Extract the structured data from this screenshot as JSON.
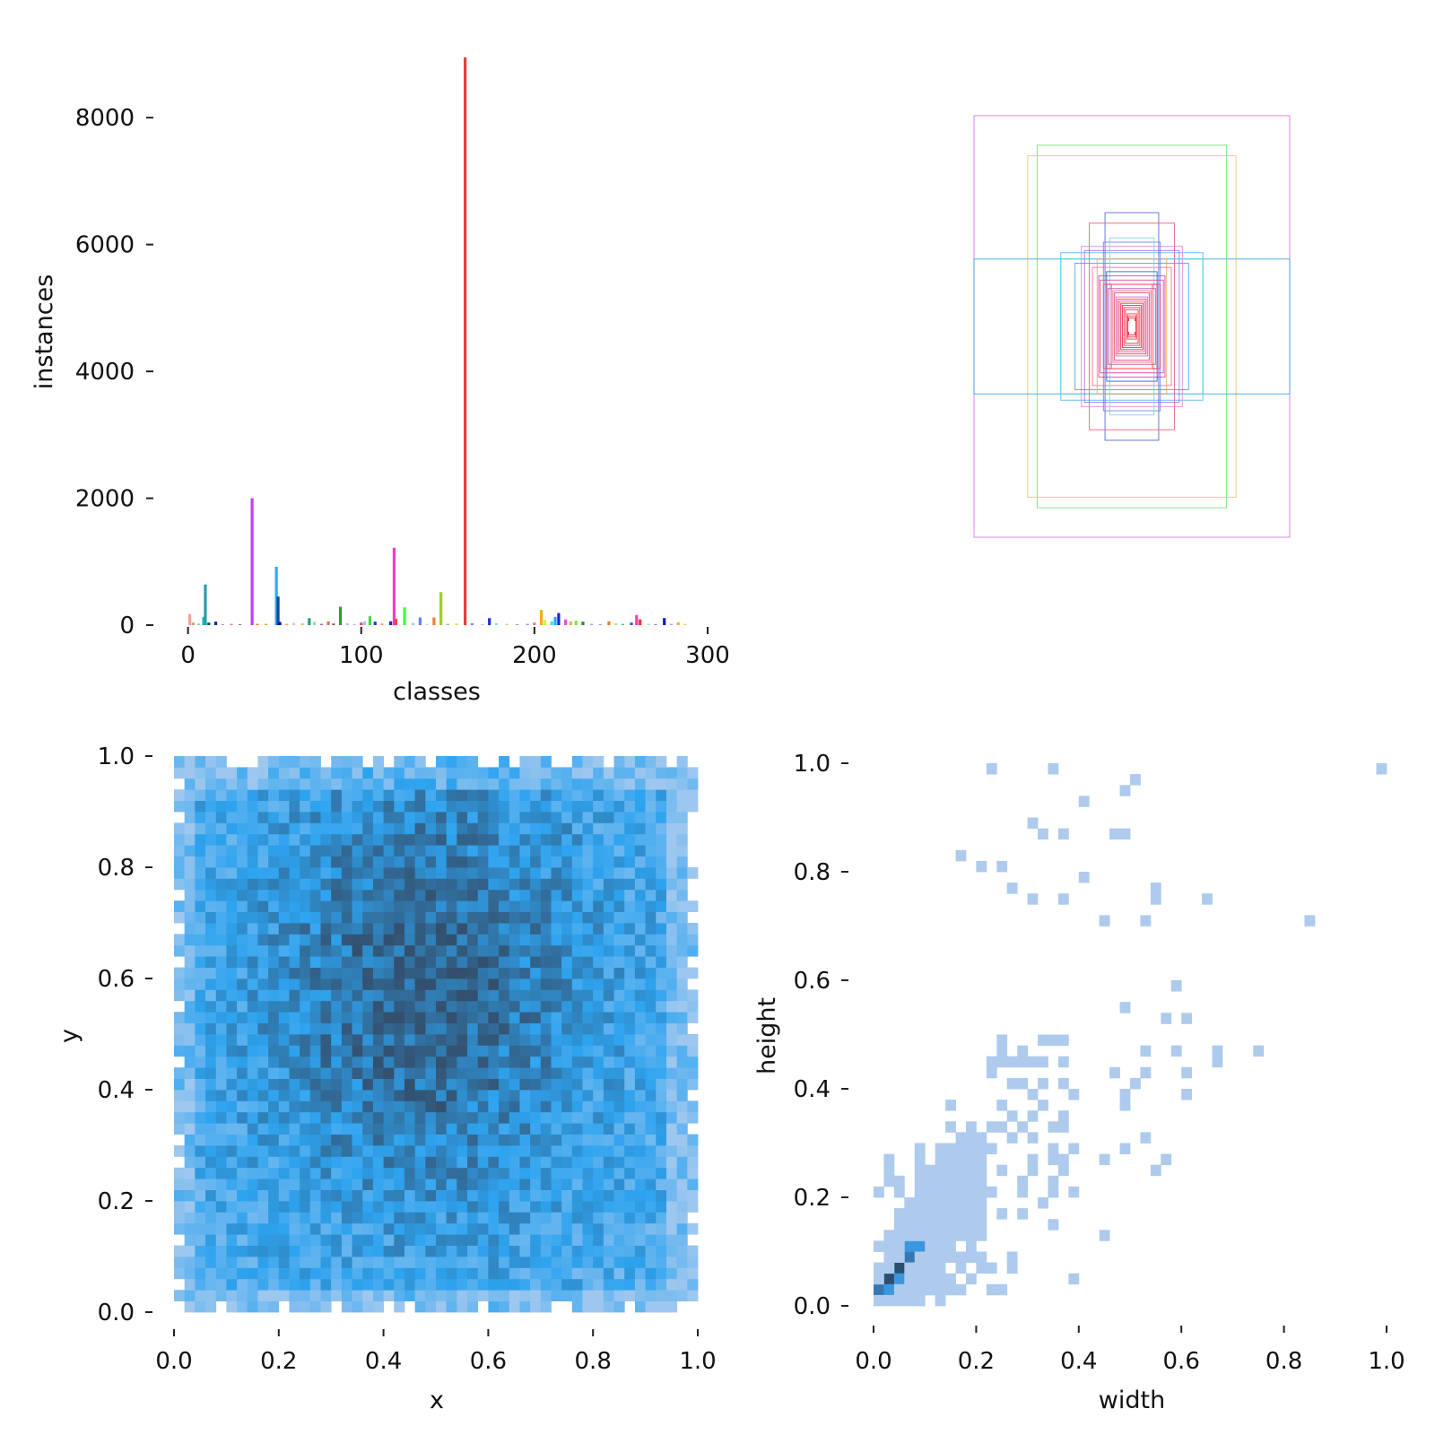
{
  "chart_data": [
    {
      "type": "bar",
      "id": "class-histogram",
      "xlabel": "classes",
      "ylabel": "instances",
      "xlim": [
        -5,
        300
      ],
      "ylim": [
        0,
        8950
      ],
      "xticks": [
        "0",
        "100",
        "200",
        "300"
      ],
      "yticks": [
        "0",
        "2000",
        "4000",
        "6000",
        "8000"
      ],
      "bars": [
        {
          "x": 1,
          "v": 175,
          "c": "#f4a39a"
        },
        {
          "x": 3,
          "v": 40,
          "c": "#c8a070"
        },
        {
          "x": 6,
          "v": 25,
          "c": "#7bd4c4"
        },
        {
          "x": 9,
          "v": 130,
          "c": "#17becf"
        },
        {
          "x": 10,
          "v": 640,
          "c": "#2e9aa8"
        },
        {
          "x": 12,
          "v": 40,
          "c": "#0a5c3c"
        },
        {
          "x": 16,
          "v": 55,
          "c": "#1f1f9f"
        },
        {
          "x": 20,
          "v": 15,
          "c": "#9aa0a6"
        },
        {
          "x": 25,
          "v": 20,
          "c": "#e377c2"
        },
        {
          "x": 30,
          "v": 15,
          "c": "#7f7f7f"
        },
        {
          "x": 37,
          "v": 2000,
          "c": "#c040f0"
        },
        {
          "x": 40,
          "v": 20,
          "c": "#ff7f0e"
        },
        {
          "x": 45,
          "v": 20,
          "c": "#bcbd22"
        },
        {
          "x": 51,
          "v": 920,
          "c": "#1fb4f0"
        },
        {
          "x": 52,
          "v": 450,
          "c": "#1f3f9f"
        },
        {
          "x": 53,
          "v": 50,
          "c": "#0000c0"
        },
        {
          "x": 57,
          "v": 20,
          "c": "#ff9896"
        },
        {
          "x": 61,
          "v": 35,
          "c": "#f7b6d2"
        },
        {
          "x": 66,
          "v": 30,
          "c": "#ffbb78"
        },
        {
          "x": 70,
          "v": 110,
          "c": "#20a080"
        },
        {
          "x": 73,
          "v": 50,
          "c": "#98df8a"
        },
        {
          "x": 77,
          "v": 20,
          "c": "#9467bd"
        },
        {
          "x": 81,
          "v": 60,
          "c": "#e87060"
        },
        {
          "x": 84,
          "v": 25,
          "c": "#8c564b"
        },
        {
          "x": 88,
          "v": 290,
          "c": "#2ca02c"
        },
        {
          "x": 92,
          "v": 30,
          "c": "#aec7e8"
        },
        {
          "x": 96,
          "v": 15,
          "c": "#c5b0d5"
        },
        {
          "x": 100,
          "v": 40,
          "c": "#ff4060"
        },
        {
          "x": 102,
          "v": 60,
          "c": "#a0c0ff"
        },
        {
          "x": 105,
          "v": 140,
          "c": "#40e040"
        },
        {
          "x": 108,
          "v": 55,
          "c": "#2040c0"
        },
        {
          "x": 112,
          "v": 25,
          "c": "#f0a0a0"
        },
        {
          "x": 117,
          "v": 60,
          "c": "#2020d0"
        },
        {
          "x": 119,
          "v": 1220,
          "c": "#f040c0"
        },
        {
          "x": 120,
          "v": 100,
          "c": "#ff4040"
        },
        {
          "x": 125,
          "v": 280,
          "c": "#40ff40"
        },
        {
          "x": 130,
          "v": 35,
          "c": "#9ad0f0"
        },
        {
          "x": 134,
          "v": 120,
          "c": "#6080ff"
        },
        {
          "x": 138,
          "v": 20,
          "c": "#d0d0d0"
        },
        {
          "x": 142,
          "v": 120,
          "c": "#f08030"
        },
        {
          "x": 146,
          "v": 520,
          "c": "#a0d020"
        },
        {
          "x": 150,
          "v": 20,
          "c": "#80c0a0"
        },
        {
          "x": 155,
          "v": 25,
          "c": "#ffd040"
        },
        {
          "x": 160,
          "v": 8950,
          "c": "#e83c3c"
        },
        {
          "x": 164,
          "v": 30,
          "c": "#8080ff"
        },
        {
          "x": 170,
          "v": 15,
          "c": "#c0c0c0"
        },
        {
          "x": 174,
          "v": 110,
          "c": "#2030d0"
        },
        {
          "x": 178,
          "v": 30,
          "c": "#80e0f0"
        },
        {
          "x": 184,
          "v": 20,
          "c": "#f0c080"
        },
        {
          "x": 190,
          "v": 15,
          "c": "#a0a0a0"
        },
        {
          "x": 196,
          "v": 20,
          "c": "#60b0ff"
        },
        {
          "x": 200,
          "v": 40,
          "c": "#f070a0"
        },
        {
          "x": 204,
          "v": 240,
          "c": "#f0b020"
        },
        {
          "x": 206,
          "v": 80,
          "c": "#c0ff40"
        },
        {
          "x": 210,
          "v": 60,
          "c": "#40e0e0"
        },
        {
          "x": 212,
          "v": 130,
          "c": "#20b0ff"
        },
        {
          "x": 214,
          "v": 190,
          "c": "#2020d0"
        },
        {
          "x": 218,
          "v": 90,
          "c": "#f050d0"
        },
        {
          "x": 221,
          "v": 60,
          "c": "#f0b040"
        },
        {
          "x": 224,
          "v": 70,
          "c": "#80e040"
        },
        {
          "x": 228,
          "v": 55,
          "c": "#209020"
        },
        {
          "x": 233,
          "v": 20,
          "c": "#a0a0ff"
        },
        {
          "x": 238,
          "v": 15,
          "c": "#c080f0"
        },
        {
          "x": 243,
          "v": 60,
          "c": "#f08020"
        },
        {
          "x": 247,
          "v": 30,
          "c": "#c0e080"
        },
        {
          "x": 251,
          "v": 20,
          "c": "#40c0a0"
        },
        {
          "x": 256,
          "v": 40,
          "c": "#4040ff"
        },
        {
          "x": 259,
          "v": 160,
          "c": "#f040b0"
        },
        {
          "x": 261,
          "v": 90,
          "c": "#ff3030"
        },
        {
          "x": 266,
          "v": 20,
          "c": "#a0f0a0"
        },
        {
          "x": 270,
          "v": 15,
          "c": "#8080c0"
        },
        {
          "x": 275,
          "v": 110,
          "c": "#1010d0"
        },
        {
          "x": 279,
          "v": 20,
          "c": "#90b0f0"
        },
        {
          "x": 283,
          "v": 45,
          "c": "#f0b030"
        },
        {
          "x": 287,
          "v": 20,
          "c": "#f0d070"
        }
      ]
    },
    {
      "type": "other",
      "id": "box-overlay",
      "description_free": true,
      "axes_visible": false,
      "boxes": [
        {
          "w": 1.0,
          "h": 1.0,
          "c": "#d070e8"
        },
        {
          "w": 0.6,
          "h": 0.86,
          "c": "#70e070"
        },
        {
          "w": 0.66,
          "h": 0.81,
          "c": "#f0c070"
        },
        {
          "w": 1.0,
          "h": 0.32,
          "c": "#3aa0d8"
        },
        {
          "w": 0.45,
          "h": 0.35,
          "c": "#5ab0f0"
        },
        {
          "w": 0.45,
          "h": 0.32,
          "c": "#40d8e8"
        },
        {
          "w": 0.17,
          "h": 0.54,
          "c": "#5060d0"
        },
        {
          "w": 0.27,
          "h": 0.49,
          "c": "#e06070"
        },
        {
          "w": 0.32,
          "h": 0.38,
          "c": "#e080d0"
        },
        {
          "w": 0.3,
          "h": 0.36,
          "c": "#a070e0"
        },
        {
          "w": 0.36,
          "h": 0.3,
          "c": "#40a0f0"
        },
        {
          "w": 0.25,
          "h": 0.28,
          "c": "#f070a0"
        },
        {
          "w": 0.18,
          "h": 0.4,
          "c": "#7080f0"
        },
        {
          "w": 0.14,
          "h": 0.42,
          "c": "#80d0f0"
        },
        {
          "w": 0.22,
          "h": 0.32,
          "c": "#f0a060"
        },
        {
          "w": 0.21,
          "h": 0.24,
          "c": "#d040a0"
        },
        {
          "w": 0.16,
          "h": 0.26,
          "c": "#2060c0"
        },
        {
          "w": 0.2,
          "h": 0.22,
          "c": "#e040a0"
        },
        {
          "w": 0.18,
          "h": 0.2,
          "c": "#f05070"
        },
        {
          "w": 0.16,
          "h": 0.2,
          "c": "#e03050"
        },
        {
          "w": 0.15,
          "h": 0.18,
          "c": "#c050c0"
        },
        {
          "w": 0.13,
          "h": 0.2,
          "c": "#ff4050"
        },
        {
          "w": 0.12,
          "h": 0.17,
          "c": "#f06080"
        },
        {
          "w": 0.11,
          "h": 0.16,
          "c": "#e04060"
        },
        {
          "w": 0.1,
          "h": 0.14,
          "c": "#d060d0"
        },
        {
          "w": 0.09,
          "h": 0.13,
          "c": "#ff3040"
        },
        {
          "w": 0.08,
          "h": 0.12,
          "c": "#f04080"
        },
        {
          "w": 0.07,
          "h": 0.11,
          "c": "#e02040"
        },
        {
          "w": 0.06,
          "h": 0.1,
          "c": "#ff2040"
        },
        {
          "w": 0.05,
          "h": 0.09,
          "c": "#f03050"
        },
        {
          "w": 0.04,
          "h": 0.08,
          "c": "#ff2030"
        },
        {
          "w": 0.03,
          "h": 0.06,
          "c": "#ff3040"
        },
        {
          "w": 0.025,
          "h": 0.05,
          "c": "#f02040"
        },
        {
          "w": 0.02,
          "h": 0.04,
          "c": "#ff1030"
        }
      ]
    },
    {
      "type": "heatmap",
      "id": "xy-histogram",
      "xlabel": "x",
      "ylabel": "y",
      "xlim": [
        0,
        1
      ],
      "ylim": [
        0,
        1
      ],
      "xticks": [
        "0.0",
        "0.2",
        "0.4",
        "0.6",
        "0.8",
        "1.0"
      ],
      "yticks": [
        "0.0",
        "0.2",
        "0.4",
        "0.6",
        "0.8",
        "1.0"
      ],
      "bins": 50,
      "x_range": [
        0.01,
        0.99
      ],
      "y_range": [
        0.01,
        0.99
      ],
      "peak": [
        0.48,
        0.58
      ],
      "color_low": "#9dc7ef",
      "color_mid": "#2ea3ef",
      "color_high": "#33506e"
    },
    {
      "type": "heatmap",
      "id": "wh-histogram",
      "xlabel": "width",
      "ylabel": "height",
      "xlim": [
        0,
        1
      ],
      "ylim": [
        0,
        1
      ],
      "xticks": [
        "0.0",
        "0.2",
        "0.4",
        "0.6",
        "0.8",
        "1.0"
      ],
      "yticks": [
        "0.0",
        "0.2",
        "0.4",
        "0.6",
        "0.8",
        "1.0"
      ],
      "bins": 50,
      "color_low": "#aecbed",
      "color_mid": "#3a97dd",
      "color_high": "#2c4e6e",
      "dense_cells": [
        {
          "w": 0.01,
          "h": 0.03,
          "level": 2
        },
        {
          "w": 0.03,
          "h": 0.05,
          "level": 3
        },
        {
          "w": 0.05,
          "h": 0.07,
          "level": 3
        },
        {
          "w": 0.07,
          "h": 0.09,
          "level": 2
        },
        {
          "w": 0.03,
          "h": 0.03,
          "level": 1
        },
        {
          "w": 0.05,
          "h": 0.05,
          "level": 1
        },
        {
          "w": 0.07,
          "h": 0.11,
          "level": 1
        },
        {
          "w": 0.09,
          "h": 0.11,
          "level": 1
        }
      ],
      "outliers": [
        [
          0.23,
          0.99
        ],
        [
          0.35,
          0.99
        ],
        [
          0.99,
          0.99
        ],
        [
          0.51,
          0.97
        ],
        [
          0.49,
          0.95
        ],
        [
          0.41,
          0.93
        ],
        [
          0.31,
          0.89
        ],
        [
          0.33,
          0.87
        ],
        [
          0.37,
          0.87
        ],
        [
          0.47,
          0.87
        ],
        [
          0.49,
          0.87
        ],
        [
          0.17,
          0.83
        ],
        [
          0.21,
          0.81
        ],
        [
          0.25,
          0.81
        ],
        [
          0.41,
          0.79
        ],
        [
          0.27,
          0.77
        ],
        [
          0.55,
          0.77
        ],
        [
          0.85,
          0.71
        ],
        [
          0.65,
          0.75
        ],
        [
          0.55,
          0.75
        ],
        [
          0.31,
          0.75
        ],
        [
          0.37,
          0.75
        ],
        [
          0.45,
          0.71
        ],
        [
          0.53,
          0.71
        ],
        [
          0.59,
          0.59
        ],
        [
          0.49,
          0.55
        ],
        [
          0.57,
          0.53
        ],
        [
          0.61,
          0.53
        ],
        [
          0.75,
          0.47
        ],
        [
          0.59,
          0.47
        ],
        [
          0.67,
          0.47
        ],
        [
          0.67,
          0.45
        ],
        [
          0.53,
          0.47
        ],
        [
          0.47,
          0.43
        ],
        [
          0.53,
          0.43
        ],
        [
          0.61,
          0.43
        ],
        [
          0.49,
          0.39
        ],
        [
          0.51,
          0.41
        ],
        [
          0.49,
          0.37
        ],
        [
          0.53,
          0.31
        ],
        [
          0.61,
          0.39
        ],
        [
          0.45,
          0.27
        ],
        [
          0.57,
          0.27
        ],
        [
          0.55,
          0.25
        ],
        [
          0.45,
          0.13
        ],
        [
          0.49,
          0.29
        ]
      ]
    }
  ]
}
